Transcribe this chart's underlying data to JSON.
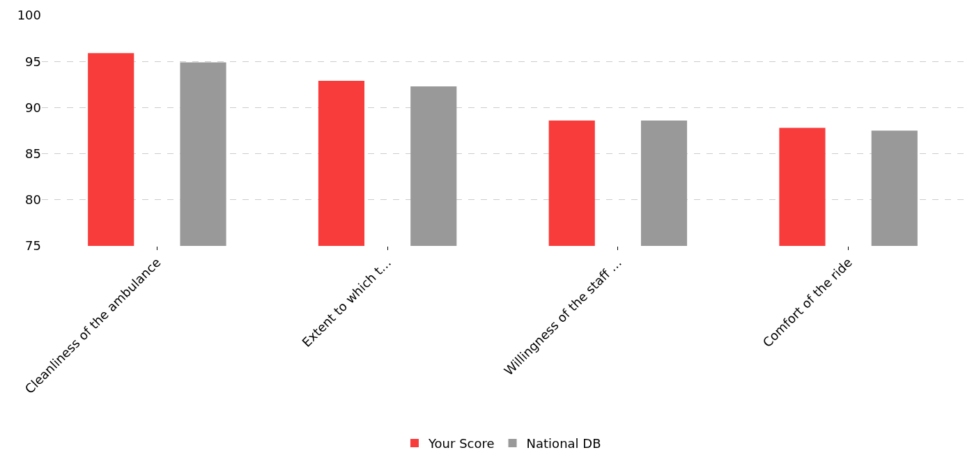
{
  "chart_data": {
    "type": "bar",
    "categories": [
      "Cleanliness of the ambulance",
      "Extent to which t…",
      "Willingness of the staff …",
      "Comfort of the ride"
    ],
    "series": [
      {
        "name": "Your Score",
        "color": "#f83c3b",
        "values": [
          95.9,
          92.9,
          88.6,
          87.8
        ]
      },
      {
        "name": "National DB",
        "color": "#999999",
        "values": [
          94.9,
          92.3,
          88.6,
          87.5
        ]
      }
    ],
    "ylim": [
      75,
      100
    ],
    "yticks": [
      75,
      80,
      85,
      90,
      95,
      100
    ],
    "grid": "y",
    "legend": "bottom"
  }
}
